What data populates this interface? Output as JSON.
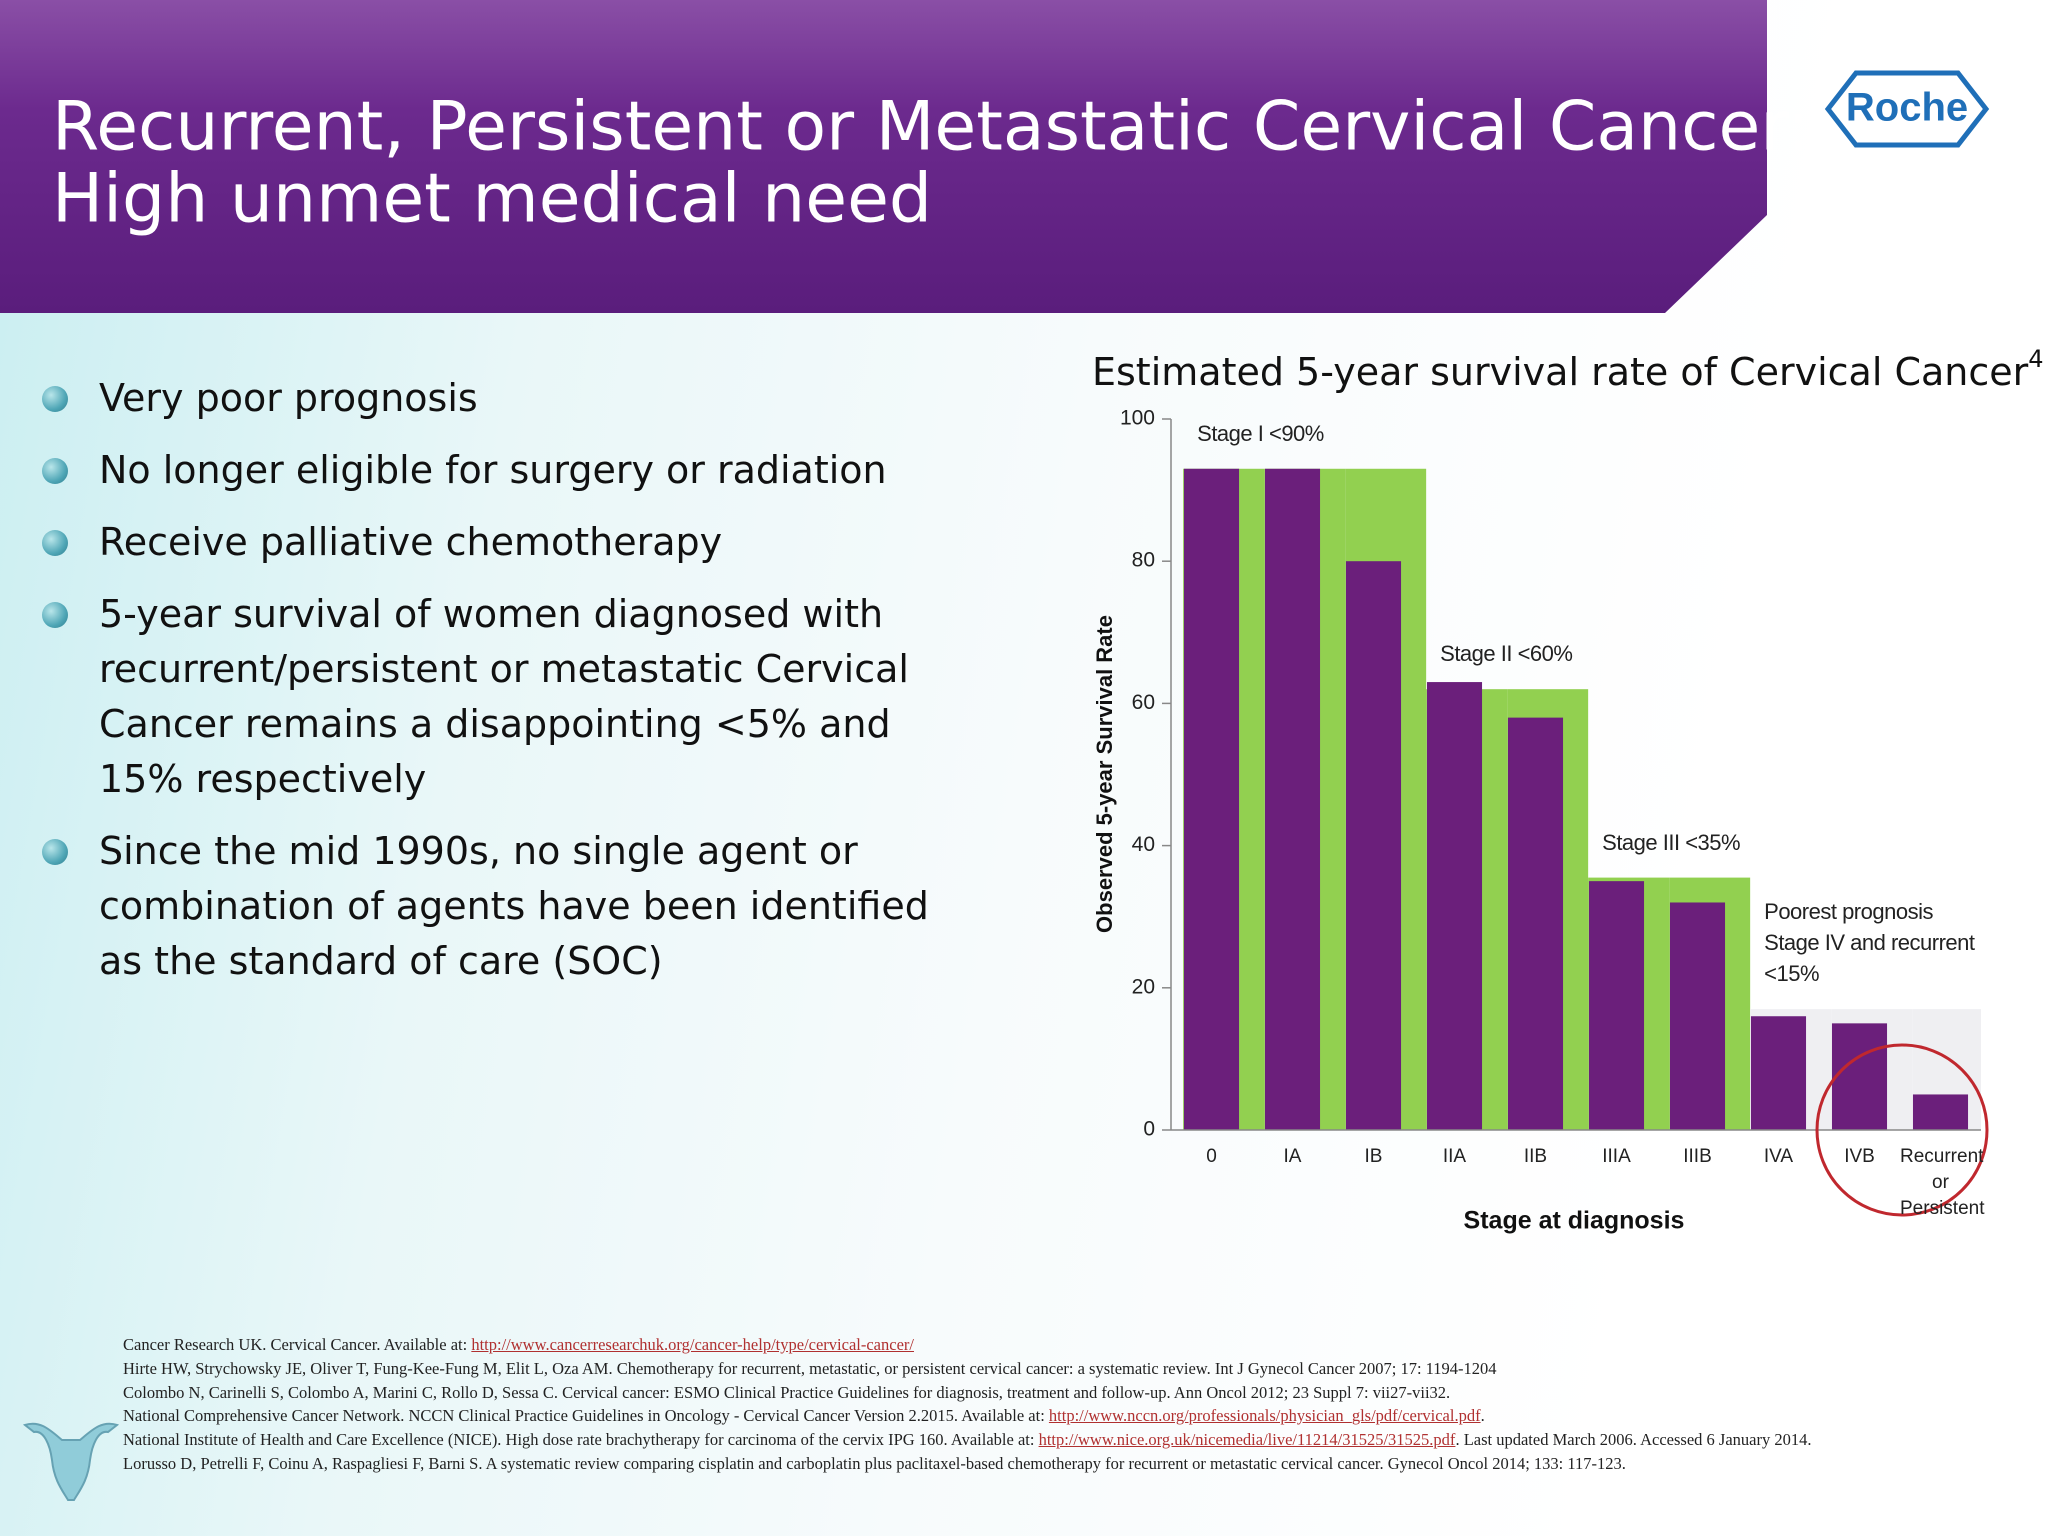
{
  "header": {
    "title_lines": [
      "Recurrent, Persistent or Metastatic Cervical Cancer:",
      "High unmet medical need"
    ],
    "logo": "Roche"
  },
  "bullets": [
    "Very poor prognosis",
    "No longer eligible for surgery or radiation",
    "Receive palliative chemotherapy",
    "5-year survival of women diagnosed with recurrent/persistent or metastatic Cervical Cancer remains a disappointing <5% and 15% respectively",
    "Since the mid 1990s, no single agent or combination of agents have been identified as the standard of care (SOC)"
  ],
  "chart_data": {
    "type": "bar",
    "title": "Estimated 5-year survival rate of Cervical Cancer",
    "title_sup": "4",
    "x_label": "Stage at diagnosis",
    "y_label": "Observed 5-year Survival Rate",
    "categories": [
      "0",
      "IA",
      "IB",
      "IIA",
      "IIB",
      "IIIA",
      "IIIB",
      "IVA",
      "IVB",
      "Recurrent or Persistent"
    ],
    "values": [
      93,
      93,
      80,
      63,
      58,
      35,
      32,
      16,
      15,
      5
    ],
    "color": "#6b1f7b",
    "bands": {
      "values": [
        93,
        93,
        93,
        62,
        62,
        35.5,
        35.5,
        17,
        17,
        17
      ]
    },
    "groups": [
      {
        "label_lines": [
          "Stage I <90%"
        ],
        "color": "#92d050"
      },
      {
        "label_lines": [
          "Stage II <60%"
        ],
        "color": "#92d050"
      },
      {
        "label_lines": [
          "Stage III <35%"
        ],
        "color": "#92d050"
      },
      {
        "label_lines": [
          "Poorest prognosis",
          "Stage IV and recurrent",
          " <15%"
        ],
        "color": "#efeff2"
      }
    ],
    "ylim": [
      0,
      100
    ],
    "yticks": [
      0,
      20,
      40,
      60,
      80,
      100
    ]
  },
  "references": [
    {
      "text": "Cancer Research UK. Cervical Cancer. Available at: ",
      "url": "http://www.cancerresearchuk.org/cancer-help/type/cervical-cancer/"
    },
    {
      "text": "Hirte HW, Strychowsky JE, Oliver T, Fung-Kee-Fung M, Elit L, Oza AM. Chemotherapy for recurrent, metastatic, or persistent cervical cancer: a systematic review. Int J Gynecol Cancer 2007; 17: 1194-1204"
    },
    {
      "text": "Colombo N, Carinelli S, Colombo A, Marini C, Rollo D, Sessa C. Cervical cancer: ESMO Clinical Practice Guidelines for diagnosis, treatment and follow-up. Ann Oncol 2012; 23 Suppl 7: vii27-vii32."
    },
    {
      "text": "National Comprehensive Cancer Network. NCCN Clinical Practice Guidelines in Oncology - Cervical Cancer Version 2.2015. Available at: ",
      "url": "http://www.nccn.org/professionals/physician_gls/pdf/cervical.pdf",
      "tail": "."
    },
    {
      "text": "National Institute of Health and Care Excellence (NICE). High dose rate brachytherapy for carcinoma of the cervix IPG 160. Available at: ",
      "url": "http://www.nice.org.uk/nicemedia/live/11214/31525/31525.pdf",
      "tail": ". Last updated March 2006. Accessed 6 January 2014."
    },
    {
      "text": "Lorusso D, Petrelli F, Coinu A, Raspagliesi F, Barni S. A systematic review comparing cisplatin and carboplatin plus paclitaxel-based chemotherapy for recurrent or metastatic cervical cancer. Gynecol Oncol 2014; 133: 117-123."
    }
  ]
}
